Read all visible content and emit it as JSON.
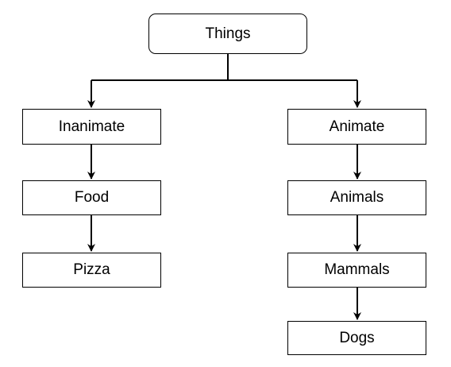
{
  "diagram": {
    "root": {
      "label": "Things"
    },
    "branches": [
      {
        "nodes": [
          "Inanimate",
          "Food",
          "Pizza"
        ]
      },
      {
        "nodes": [
          "Animate",
          "Animals",
          "Mammals",
          "Dogs"
        ]
      }
    ]
  }
}
